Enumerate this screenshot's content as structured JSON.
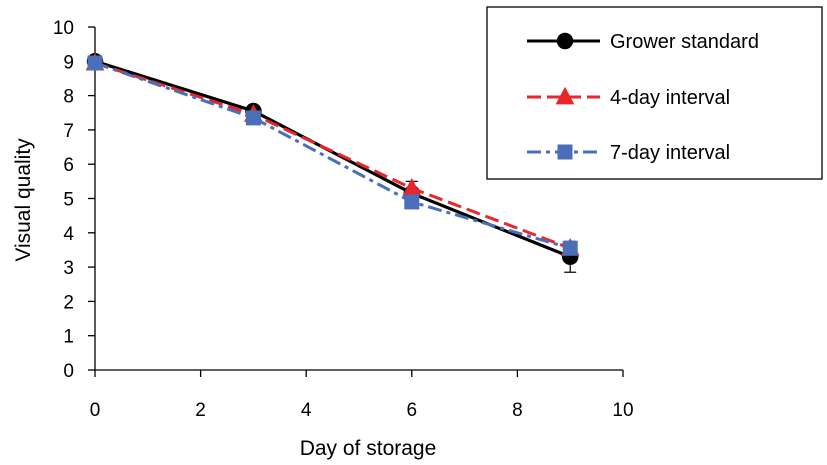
{
  "chart_data": {
    "type": "line",
    "xlabel": "Day of storage",
    "ylabel": "Visual quality",
    "xlim": [
      0,
      10
    ],
    "ylim": [
      0,
      10
    ],
    "x_ticks": [
      0,
      2,
      4,
      6,
      8,
      10
    ],
    "y_ticks": [
      0,
      1,
      2,
      3,
      4,
      5,
      6,
      7,
      8,
      9,
      10
    ],
    "legend_position": "top-right",
    "grid": false,
    "series": [
      {
        "name": "Grower standard",
        "x": [
          0,
          3,
          6,
          9
        ],
        "values": [
          9.0,
          7.55,
          5.15,
          3.3
        ],
        "error": [
          0,
          0.1,
          0.35,
          0.45
        ],
        "color": "#000000",
        "marker": "circle",
        "line_style": "solid"
      },
      {
        "name": "4-day interval",
        "x": [
          0,
          3,
          6,
          9
        ],
        "values": [
          8.95,
          7.45,
          5.3,
          3.55
        ],
        "error": [
          0,
          0,
          0,
          0
        ],
        "color": "#e8262b",
        "marker": "triangle",
        "line_style": "dashed"
      },
      {
        "name": "7-day interval",
        "x": [
          0,
          3,
          6,
          9
        ],
        "values": [
          8.95,
          7.35,
          4.9,
          3.55
        ],
        "error": [
          0,
          0,
          0,
          0
        ],
        "color": "#4a6fb8",
        "marker": "square",
        "line_style": "dashdot"
      }
    ]
  }
}
